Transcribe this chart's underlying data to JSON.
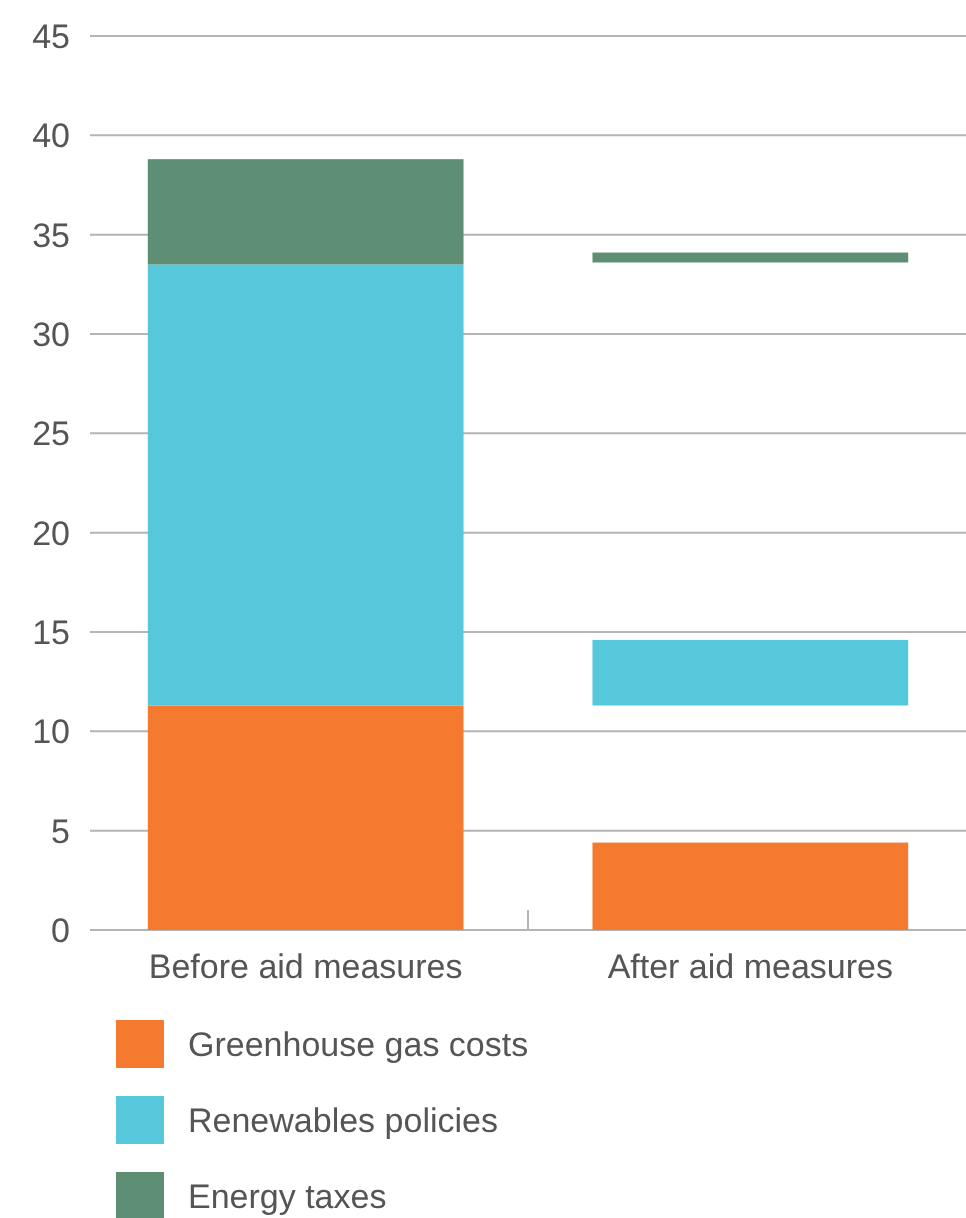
{
  "chart_data": {
    "type": "bar",
    "categories": [
      "Before aid measures",
      "After aid measures"
    ],
    "series": [
      {
        "name": "Greenhouse gas costs",
        "color": "#f47a2f",
        "values": [
          11.3,
          4.4
        ],
        "base": [
          0,
          0
        ]
      },
      {
        "name": "Renewables policies",
        "color": "#55c8dc",
        "values": [
          22.2,
          3.3
        ],
        "base": [
          11.3,
          11.3
        ]
      },
      {
        "name": "Energy taxes",
        "color": "#5e8f74",
        "values": [
          5.3,
          0.5
        ],
        "base": [
          33.5,
          33.6
        ]
      }
    ],
    "ylim": [
      0,
      45
    ],
    "yticks": [
      0,
      5,
      10,
      15,
      20,
      25,
      30,
      35,
      40,
      45
    ],
    "grid": "y",
    "legend": "bottom"
  }
}
